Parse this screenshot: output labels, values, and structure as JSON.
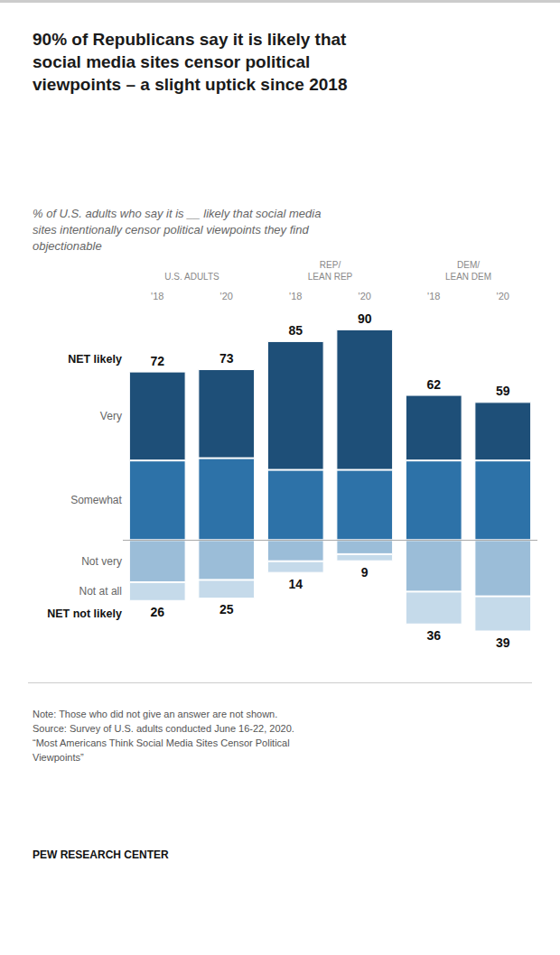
{
  "chart_data": {
    "type": "bar",
    "title": "90% of Republicans say it is likely that\nsocial media sites censor political\nviewpoints – a slight uptick since 2018",
    "subtitle": "% of U.S. adults who say it is __ likely that social media\nsites intentionally censor political viewpoints they find\nobjectionable",
    "note": "Note: Those who did not give an answer are not shown.\nSource: Survey of U.S. adults conducted June 16-22, 2020.\n“Most Americans Think Social Media Sites Censor Political\nViewpoints”",
    "source": "PEW RESEARCH CENTER",
    "groups": [
      "U.S. ADULTS",
      "REP/\nLEAN REP",
      "DEM/\nLEAN DEM"
    ],
    "categories": [
      "'18",
      "'20",
      "'18",
      "'20",
      "'18",
      "'20"
    ],
    "series": [
      {
        "name": "Somewhat",
        "color": "#2d72a8",
        "values": [
          34,
          35,
          30,
          30,
          34,
          34
        ]
      },
      {
        "name": "Very",
        "color": "#1e4f78",
        "values": [
          38,
          38,
          55,
          60,
          28,
          25
        ]
      },
      {
        "name": "Not very",
        "color": "#9bbdd8",
        "values": [
          -18,
          -17,
          -9,
          -6,
          -22,
          -24
        ]
      },
      {
        "name": "Not at all",
        "color": "#c5daea",
        "values": [
          -8,
          -8,
          -5,
          -3,
          -14,
          -15
        ]
      }
    ],
    "net": [
      {
        "label": "NET likely",
        "values": [
          72,
          73,
          85,
          90,
          62,
          59
        ]
      },
      {
        "label": "NET not likely",
        "values": [
          26,
          25,
          14,
          9,
          36,
          39
        ]
      }
    ],
    "ylim": [
      -55,
      100
    ],
    "stacked": true,
    "grid": false,
    "tick_labels": "x"
  }
}
